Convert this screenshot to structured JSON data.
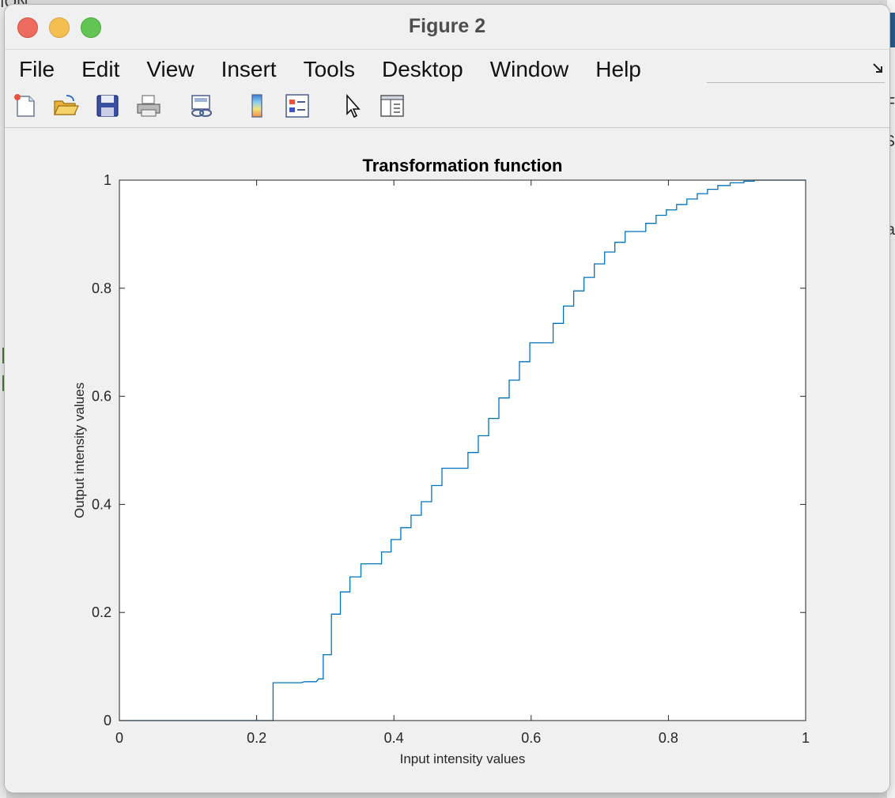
{
  "window": {
    "title": "Figure 2"
  },
  "menubar": {
    "items": [
      "File",
      "Edit",
      "View",
      "Insert",
      "Tools",
      "Desktop",
      "Window",
      "Help"
    ]
  },
  "toolbar": {
    "icons": [
      "new-figure-icon",
      "open-file-icon",
      "save-icon",
      "print-icon",
      "link-icon",
      "colorbar-icon",
      "legend-icon",
      "pointer-icon",
      "property-inspector-icon"
    ]
  },
  "background": {
    "left_text": "ION",
    "right_letters": [
      "F",
      "S",
      "a"
    ]
  },
  "chart_data": {
    "type": "line",
    "title": "Transformation function",
    "xlabel": "Input intensity values",
    "ylabel": "Output intensity values",
    "xlim": [
      0,
      1
    ],
    "ylim": [
      0,
      1
    ],
    "xticks": [
      "0",
      "0.2",
      "0.4",
      "0.6",
      "0.8",
      "1"
    ],
    "yticks": [
      "0",
      "0.2",
      "0.4",
      "0.6",
      "0.8",
      "1"
    ],
    "grid": false,
    "line_color": "#0072bd",
    "series": [
      {
        "x": [
          0,
          0.224,
          0.224,
          0.265,
          0.27,
          0.287,
          0.29,
          0.297,
          0.297,
          0.309,
          0.309,
          0.322,
          0.322,
          0.336,
          0.336,
          0.352,
          0.352,
          0.382,
          0.382,
          0.396,
          0.396,
          0.41,
          0.41,
          0.425,
          0.425,
          0.44,
          0.44,
          0.455,
          0.455,
          0.47,
          0.47,
          0.508,
          0.508,
          0.523,
          0.523,
          0.538,
          0.538,
          0.553,
          0.553,
          0.568,
          0.568,
          0.583,
          0.583,
          0.598,
          0.598,
          0.632,
          0.632,
          0.647,
          0.647,
          0.662,
          0.662,
          0.677,
          0.677,
          0.692,
          0.692,
          0.707,
          0.707,
          0.722,
          0.722,
          0.737,
          0.737,
          0.767,
          0.767,
          0.782,
          0.782,
          0.797,
          0.797,
          0.812,
          0.812,
          0.827,
          0.827,
          0.842,
          0.842,
          0.857,
          0.857,
          0.872,
          0.872,
          0.89,
          0.89,
          0.91,
          0.91,
          0.925,
          0.925,
          1
        ],
        "y": [
          0,
          0,
          0.07,
          0.07,
          0.072,
          0.072,
          0.077,
          0.077,
          0.122,
          0.122,
          0.197,
          0.197,
          0.238,
          0.238,
          0.266,
          0.266,
          0.29,
          0.29,
          0.312,
          0.312,
          0.335,
          0.335,
          0.357,
          0.357,
          0.38,
          0.38,
          0.405,
          0.405,
          0.435,
          0.435,
          0.467,
          0.467,
          0.496,
          0.496,
          0.527,
          0.527,
          0.559,
          0.559,
          0.597,
          0.597,
          0.63,
          0.63,
          0.664,
          0.664,
          0.699,
          0.699,
          0.735,
          0.735,
          0.767,
          0.767,
          0.795,
          0.795,
          0.82,
          0.82,
          0.845,
          0.845,
          0.867,
          0.867,
          0.885,
          0.885,
          0.905,
          0.905,
          0.92,
          0.92,
          0.935,
          0.935,
          0.945,
          0.945,
          0.955,
          0.955,
          0.965,
          0.965,
          0.975,
          0.975,
          0.983,
          0.983,
          0.99,
          0.99,
          0.995,
          0.995,
          0.998,
          0.998,
          1,
          1
        ]
      }
    ]
  }
}
